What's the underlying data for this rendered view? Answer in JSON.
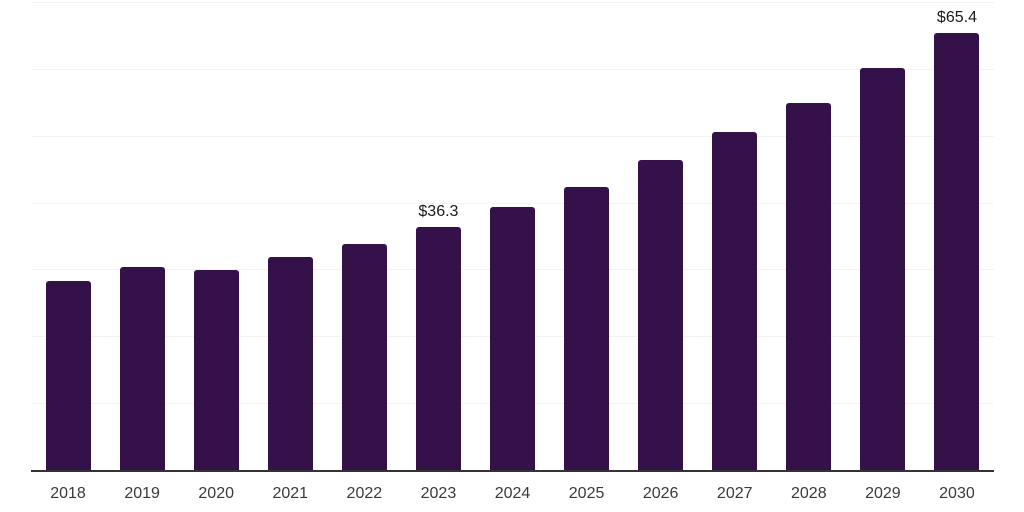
{
  "chart_data": {
    "type": "bar",
    "title": "",
    "xlabel": "",
    "ylabel": "",
    "categories": [
      "2018",
      "2019",
      "2020",
      "2021",
      "2022",
      "2023",
      "2024",
      "2025",
      "2026",
      "2027",
      "2028",
      "2029",
      "2030"
    ],
    "values": [
      28.3,
      30.4,
      29.9,
      31.8,
      33.8,
      36.3,
      39.3,
      42.4,
      46.3,
      50.5,
      54.9,
      60.1,
      65.4
    ],
    "value_labels": [
      {
        "category": "2023",
        "text": "$36.3"
      },
      {
        "category": "2030",
        "text": "$65.4"
      }
    ],
    "ylim": [
      0,
      70
    ],
    "grid_step": 10,
    "grid": true,
    "legend": false,
    "colors": {
      "bar": "#351149",
      "grid": "#f3f3f3",
      "axis_line": "#333333",
      "tick_label": "#3a3a3a",
      "value_label": "#1a1a1a",
      "background": "#ffffff"
    }
  }
}
